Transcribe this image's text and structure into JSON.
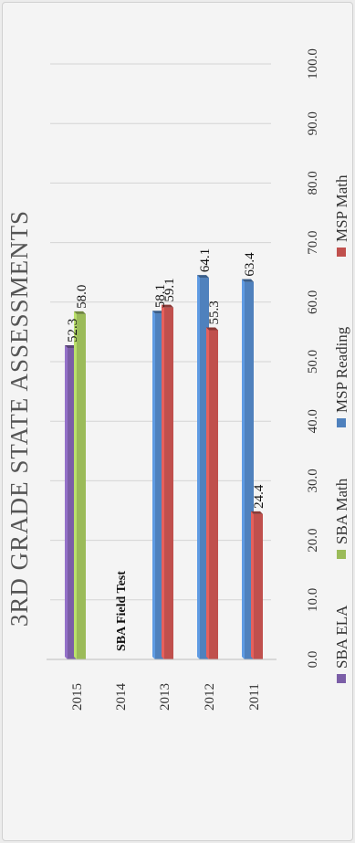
{
  "chart_data": {
    "type": "bar",
    "title": "3RD GRADE STATE ASSESSMENTS",
    "categories": [
      "2015",
      "2014",
      "2013",
      "2012",
      "2011"
    ],
    "series": [
      {
        "name": "SBA ELA",
        "color": "#7b5ea7",
        "values": [
          52.3,
          null,
          null,
          null,
          null
        ]
      },
      {
        "name": "SBA Math",
        "color": "#9bbb59",
        "values": [
          58.0,
          null,
          null,
          null,
          null
        ]
      },
      {
        "name": "MSP Reading",
        "color": "#4f81bd",
        "values": [
          null,
          null,
          58.1,
          64.1,
          63.4
        ]
      },
      {
        "name": "MSP Math",
        "color": "#c0504d",
        "values": [
          null,
          null,
          59.1,
          55.3,
          24.4
        ]
      }
    ],
    "data_labels": [
      [
        "52.3",
        null,
        null,
        null,
        null
      ],
      [
        "58.0",
        null,
        null,
        null,
        null
      ],
      [
        null,
        null,
        "58.1",
        "64.1",
        "63.4"
      ],
      [
        null,
        null,
        "59.1",
        "55.3",
        "24.4"
      ]
    ],
    "value_ticks": [
      "0.0",
      "10.0",
      "20.0",
      "30.0",
      "40.0",
      "50.0",
      "60.0",
      "70.0",
      "80.0",
      "90.0",
      "100.0"
    ],
    "ylim": [
      0,
      100
    ],
    "annotation": {
      "category": "2014",
      "text": "SBA Field Test"
    },
    "legend_position": "bottom",
    "grid": true
  }
}
